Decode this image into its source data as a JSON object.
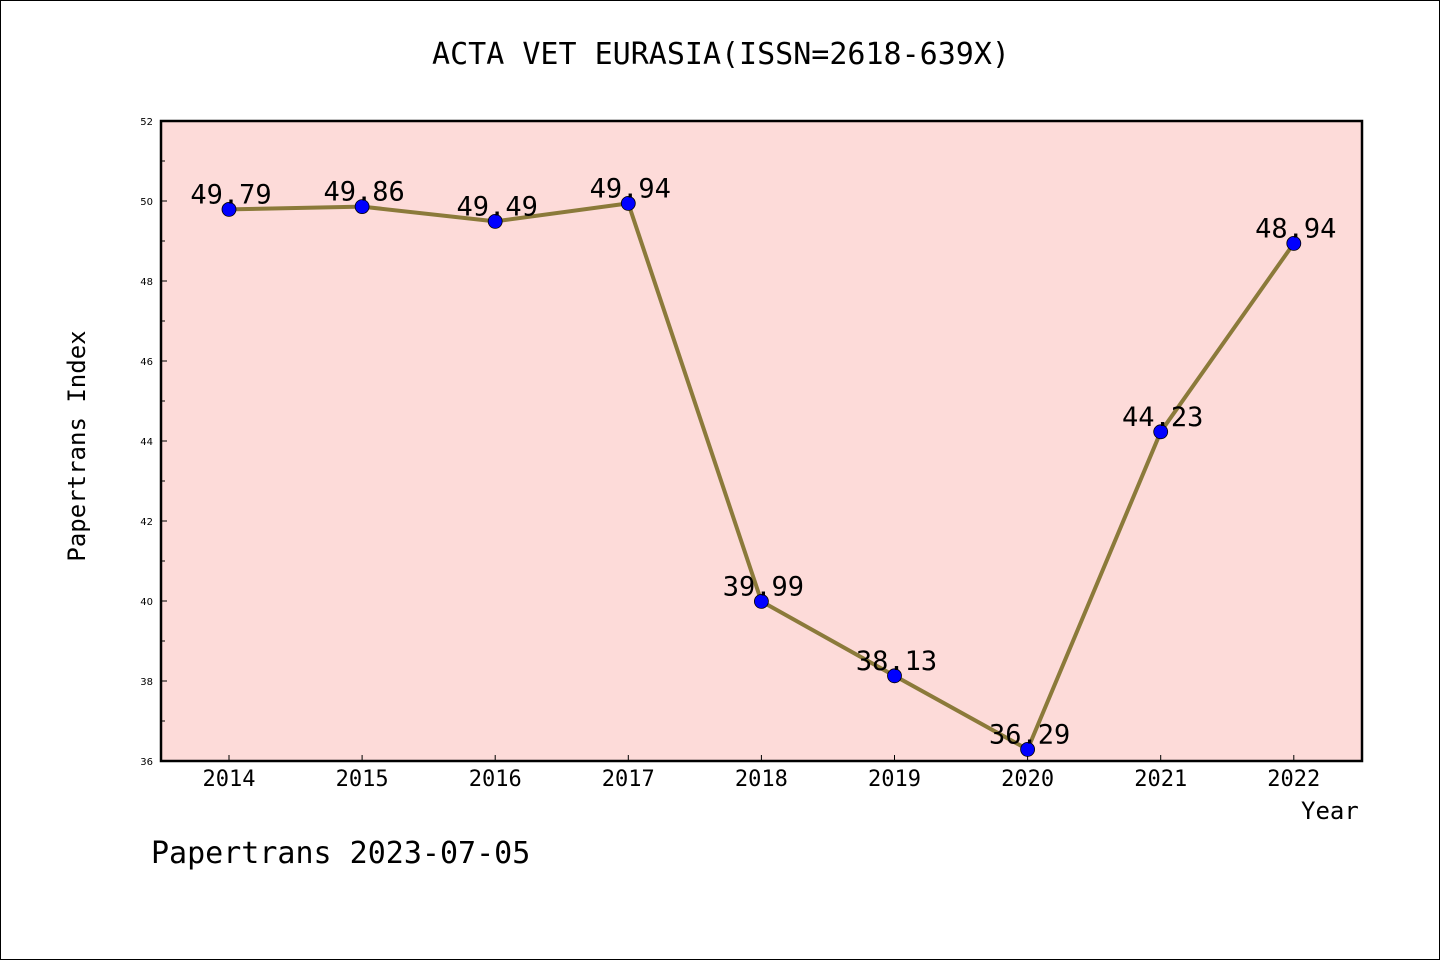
{
  "chart_data": {
    "type": "line",
    "title": "ACTA VET EURASIA(ISSN=2618-639X)",
    "xlabel": "Year",
    "ylabel": "Papertrans Index",
    "x": [
      "2014",
      "2015",
      "2016",
      "2017",
      "2018",
      "2019",
      "2020",
      "2021",
      "2022"
    ],
    "series": [
      {
        "values": [
          49.79,
          49.86,
          49.49,
          49.94,
          39.99,
          38.13,
          36.29,
          44.23,
          48.94
        ],
        "data_labels": [
          "49.79",
          "49.86",
          "49.49",
          "49.94",
          "39.99",
          "38.13",
          "36.29",
          "44.23",
          "48.94"
        ]
      }
    ],
    "ylim": [
      36,
      52
    ],
    "y_ticks": [
      "36",
      "38",
      "40",
      "42",
      "44",
      "46",
      "48",
      "50",
      "52"
    ],
    "grid": false,
    "colors": {
      "plot_background": "#fddbd9",
      "line": "#8b7a3a",
      "marker": "#0000ff"
    }
  },
  "footer": {
    "note": "Papertrans 2023-07-05"
  }
}
